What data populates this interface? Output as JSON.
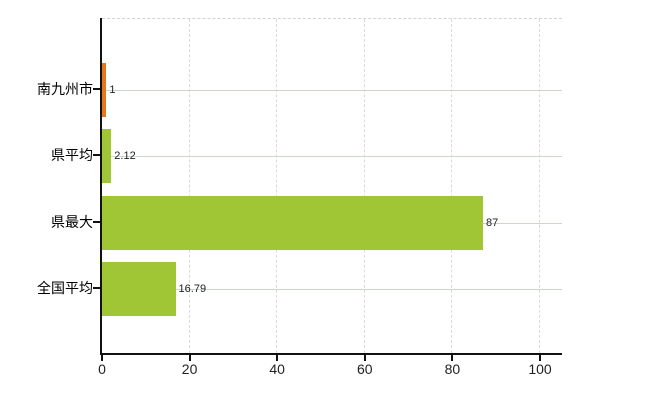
{
  "chart": {
    "background": "#ffffff",
    "axis_color": "#111111",
    "h_grid_color": "#ccd6cc",
    "v_grid_color": "#d8dcd8",
    "text_color": "#000000",
    "value_label_color": "#222222",
    "bar_color_green": "#a0c535",
    "bar_color_orange": "#e8761d"
  },
  "chart_data": {
    "type": "bar",
    "orientation": "horizontal",
    "title": "",
    "xlabel": "",
    "ylabel": "",
    "categories": [
      "南九州市",
      "県平均",
      "県最大",
      "全国平均"
    ],
    "values": [
      1,
      2.12,
      87,
      16.79
    ],
    "value_labels": [
      "1",
      "2.12",
      "87",
      "16.79"
    ],
    "bar_colors": [
      "#e8761d",
      "#a0c535",
      "#a0c535",
      "#a0c535"
    ],
    "x_ticks": [
      0,
      20,
      40,
      60,
      80,
      100
    ],
    "x_tick_labels": [
      "0",
      "20",
      "40",
      "60",
      "80",
      "100"
    ],
    "xlim": [
      0,
      105
    ],
    "grid": true,
    "legend": false
  }
}
